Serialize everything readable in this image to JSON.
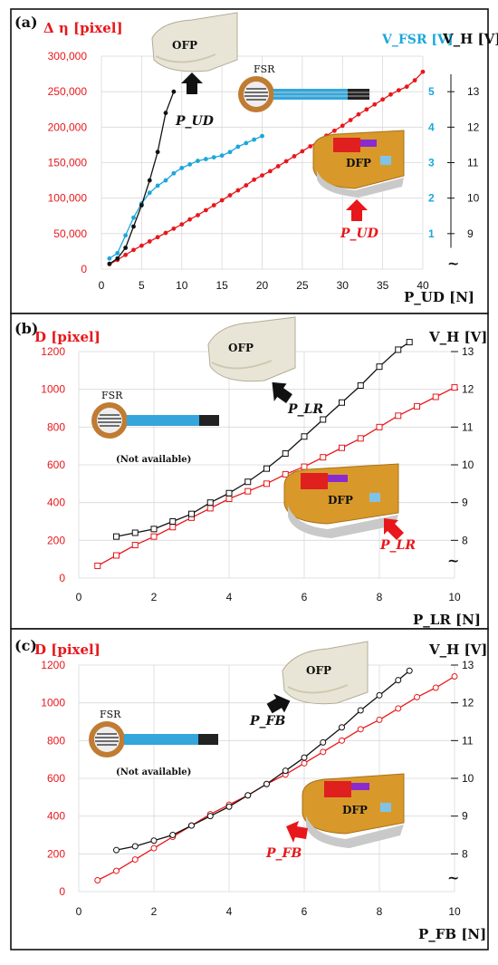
{
  "panels": [
    {
      "label": "(a)",
      "left_title": "Δ η [pixel]",
      "right_title_fsr": "V_FSR [V]",
      "right_title_h": "V_H [V]",
      "x_title": "P_UD [N]",
      "annotation_ofp": "P_UD",
      "annotation_dfp": "P_UD",
      "ofp_label": "OFP",
      "dfp_label": "DFP",
      "fsr_label": "FSR",
      "note": "",
      "break_mark": "~"
    },
    {
      "label": "(b)",
      "left_title": "D [pixel]",
      "right_title_h": "V_H [V]",
      "x_title": "P_LR [N]",
      "annotation_ofp": "P_LR",
      "annotation_dfp": "P_LR",
      "ofp_label": "OFP",
      "dfp_label": "DFP",
      "fsr_label": "FSR",
      "note": "(Not available)",
      "break_mark": "~"
    },
    {
      "label": "(c)",
      "left_title": "D [pixel]",
      "right_title_h": "V_H [V]",
      "x_title": "P_FB [N]",
      "annotation_ofp": "P_FB",
      "annotation_dfp": "P_FB",
      "ofp_label": "OFP",
      "dfp_label": "DFP",
      "fsr_label": "FSR",
      "note": "(Not available)",
      "break_mark": "~"
    }
  ],
  "colors": {
    "red": "#e8171b",
    "black": "#111111",
    "blue": "#1aa7dc"
  },
  "chart_data": [
    {
      "type": "line",
      "xlim": [
        0,
        40
      ],
      "xticks": [
        0,
        5,
        10,
        15,
        20,
        25,
        30,
        35,
        40
      ],
      "ylim_left": [
        0,
        300000
      ],
      "yticks_left": [
        0,
        50000,
        100000,
        150000,
        200000,
        250000,
        300000
      ],
      "ytick_labels_left": [
        "0",
        "50,000",
        "100,000",
        "150,000",
        "200,000",
        "250,000",
        "300,000"
      ],
      "ylim_right_fsr": [
        0,
        6
      ],
      "yticks_right_fsr": [
        1,
        2,
        3,
        4,
        5
      ],
      "ylim_right_h": [
        8,
        14
      ],
      "yticks_right_h": [
        9,
        10,
        11,
        12,
        13
      ],
      "grid": true,
      "series": [
        {
          "axis": "left",
          "color": "red",
          "marker": "circle",
          "x": [
            1,
            2,
            3,
            4,
            5,
            6,
            7,
            8,
            9,
            10,
            11,
            12,
            13,
            14,
            15,
            16,
            17,
            18,
            19,
            20,
            21,
            22,
            23,
            24,
            25,
            26,
            27,
            28,
            29,
            30,
            31,
            32,
            33,
            34,
            35,
            36,
            37,
            38,
            39,
            40
          ],
          "y": [
            7000,
            13000,
            20000,
            27000,
            33000,
            39000,
            45000,
            51000,
            57000,
            63000,
            70000,
            76000,
            83000,
            90000,
            97000,
            104000,
            111000,
            118000,
            126000,
            132000,
            138000,
            145000,
            152000,
            159000,
            166000,
            173000,
            180000,
            188000,
            195000,
            202000,
            210000,
            218000,
            225000,
            232000,
            239000,
            246000,
            252000,
            257000,
            266000,
            278000
          ]
        },
        {
          "axis": "right_fsr",
          "color": "blue",
          "marker": "circle",
          "x": [
            1,
            2,
            3,
            4,
            5,
            6,
            7,
            8,
            9,
            10,
            11,
            12,
            13,
            14,
            15,
            16,
            17,
            18,
            19,
            20
          ],
          "y": [
            0.3,
            0.45,
            0.95,
            1.45,
            1.85,
            2.15,
            2.35,
            2.5,
            2.7,
            2.85,
            2.95,
            3.05,
            3.1,
            3.15,
            3.2,
            3.3,
            3.45,
            3.55,
            3.65,
            3.75
          ]
        },
        {
          "axis": "right_h",
          "color": "black",
          "marker": "circle",
          "x": [
            1,
            2,
            3,
            4,
            5,
            6,
            7,
            8,
            9
          ],
          "y": [
            8.15,
            8.3,
            8.6,
            9.2,
            9.8,
            10.5,
            11.3,
            12.4,
            13.0
          ]
        }
      ]
    },
    {
      "type": "line",
      "xlim": [
        0,
        10
      ],
      "xticks": [
        0,
        2,
        4,
        6,
        8,
        10
      ],
      "ylim_left": [
        0,
        1200
      ],
      "yticks_left": [
        0,
        200,
        400,
        600,
        800,
        1000,
        1200
      ],
      "ytick_labels_left": [
        "0",
        "200",
        "400",
        "600",
        "800",
        "1000",
        "1200"
      ],
      "ylim_right_h": [
        7,
        13
      ],
      "yticks_right_h": [
        8,
        9,
        10,
        11,
        12,
        13
      ],
      "grid": true,
      "series": [
        {
          "axis": "left",
          "color": "red",
          "marker": "square",
          "x": [
            0.5,
            1,
            1.5,
            2,
            2.5,
            3,
            3.5,
            4,
            4.5,
            5,
            5.5,
            6,
            6.5,
            7,
            7.5,
            8,
            8.5,
            9,
            9.5,
            10
          ],
          "y": [
            65,
            120,
            175,
            220,
            270,
            320,
            370,
            420,
            460,
            500,
            550,
            590,
            640,
            690,
            740,
            800,
            860,
            910,
            960,
            1010
          ]
        },
        {
          "axis": "right_h",
          "color": "black",
          "marker": "square",
          "x": [
            1,
            1.5,
            2,
            2.5,
            3,
            3.5,
            4,
            4.5,
            5,
            5.5,
            6,
            6.5,
            7,
            7.5,
            8,
            8.5,
            8.8
          ],
          "y": [
            8.1,
            8.2,
            8.3,
            8.5,
            8.7,
            9.0,
            9.25,
            9.55,
            9.9,
            10.3,
            10.75,
            11.2,
            11.65,
            12.1,
            12.6,
            13.05,
            13.25
          ]
        }
      ]
    },
    {
      "type": "line",
      "xlim": [
        0,
        10
      ],
      "xticks": [
        0,
        2,
        4,
        6,
        8,
        10
      ],
      "ylim_left": [
        0,
        1200
      ],
      "yticks_left": [
        0,
        200,
        400,
        600,
        800,
        1000,
        1200
      ],
      "ytick_labels_left": [
        "0",
        "200",
        "400",
        "600",
        "800",
        "1000",
        "1200"
      ],
      "ylim_right_h": [
        7,
        13
      ],
      "yticks_right_h": [
        8,
        9,
        10,
        11,
        12,
        13
      ],
      "grid": true,
      "series": [
        {
          "axis": "left",
          "color": "red",
          "marker": "circle",
          "x": [
            0.5,
            1,
            1.5,
            2,
            2.5,
            3,
            3.5,
            4,
            4.5,
            5,
            5.5,
            6,
            6.5,
            7,
            7.5,
            8,
            8.5,
            9,
            9.5,
            10
          ],
          "y": [
            60,
            110,
            170,
            230,
            290,
            350,
            410,
            460,
            510,
            570,
            620,
            680,
            740,
            800,
            860,
            910,
            970,
            1030,
            1080,
            1140
          ]
        },
        {
          "axis": "right_h",
          "color": "black",
          "marker": "circle",
          "x": [
            1,
            1.5,
            2,
            2.5,
            3,
            3.5,
            4,
            4.5,
            5,
            5.5,
            6,
            6.5,
            7,
            7.5,
            8,
            8.5,
            8.8
          ],
          "y": [
            8.1,
            8.2,
            8.35,
            8.5,
            8.75,
            9.0,
            9.25,
            9.55,
            9.85,
            10.2,
            10.55,
            10.95,
            11.35,
            11.8,
            12.2,
            12.6,
            12.85
          ]
        }
      ]
    }
  ]
}
